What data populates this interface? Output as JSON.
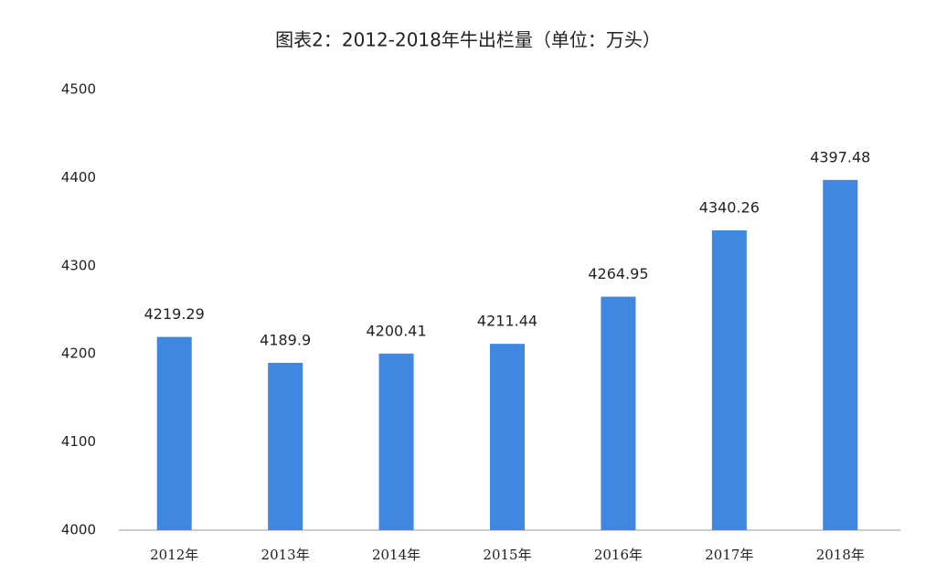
{
  "chart_data": {
    "type": "bar",
    "title": "图表2：2012-2018年牛出栏量（单位：万头）",
    "categories": [
      "2012年",
      "2013年",
      "2014年",
      "2015年",
      "2016年",
      "2017年",
      "2018年"
    ],
    "values": [
      4219.29,
      4189.9,
      4200.41,
      4211.44,
      4264.95,
      4340.26,
      4397.48
    ],
    "color": "#3f87e0",
    "ylim": [
      4000,
      4500
    ],
    "yticks": [
      4000,
      4100,
      4200,
      4300,
      4400,
      4500
    ],
    "grid": false
  }
}
